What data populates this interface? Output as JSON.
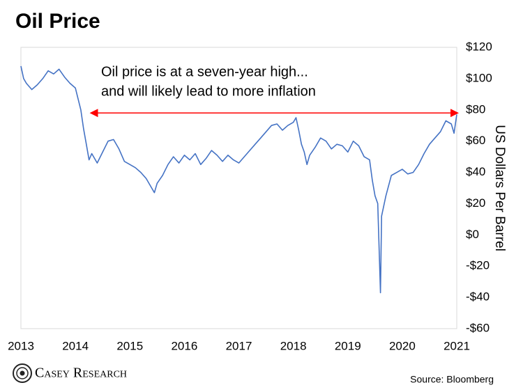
{
  "chart_data": {
    "type": "line",
    "title": "Oil Price",
    "annotation": [
      "Oil price is at a seven-year high...",
      "and will likely lead to more inflation"
    ],
    "y_label": "US Dollars Per Barrel",
    "source": "Source: Bloomberg",
    "brand": "Casey Research",
    "xlim": [
      2013,
      2021
    ],
    "xticks": [
      2013,
      2014,
      2015,
      2016,
      2017,
      2018,
      2019,
      2020,
      2021
    ],
    "ylim": [
      -60,
      120
    ],
    "yticks": [
      {
        "value": -60,
        "label": "-$60"
      },
      {
        "value": -40,
        "label": "-$40"
      },
      {
        "value": -20,
        "label": "-$20"
      },
      {
        "value": 0,
        "label": "$0"
      },
      {
        "value": 20,
        "label": "$20"
      },
      {
        "value": 40,
        "label": "$40"
      },
      {
        "value": 60,
        "label": "$60"
      },
      {
        "value": 80,
        "label": "$80"
      },
      {
        "value": 100,
        "label": "$100"
      },
      {
        "value": 120,
        "label": "$120"
      }
    ],
    "arrow": {
      "x": [
        2014.3,
        2021
      ],
      "y": 78,
      "color": "#ff0000"
    },
    "series": [
      {
        "name": "Oil Price",
        "color": "#4472c4",
        "x": [
          2013.0,
          2013.05,
          2013.1,
          2013.2,
          2013.3,
          2013.4,
          2013.5,
          2013.6,
          2013.7,
          2013.8,
          2013.9,
          2014.0,
          2014.1,
          2014.15,
          2014.2,
          2014.25,
          2014.3,
          2014.4,
          2014.5,
          2014.6,
          2014.7,
          2014.8,
          2014.9,
          2015.0,
          2015.1,
          2015.2,
          2015.3,
          2015.4,
          2015.45,
          2015.5,
          2015.6,
          2015.7,
          2015.8,
          2015.9,
          2016.0,
          2016.1,
          2016.2,
          2016.3,
          2016.4,
          2016.5,
          2016.6,
          2016.7,
          2016.8,
          2016.9,
          2017.0,
          2017.1,
          2017.2,
          2017.3,
          2017.4,
          2017.5,
          2017.6,
          2017.7,
          2017.8,
          2017.9,
          2018.0,
          2018.05,
          2018.1,
          2018.15,
          2018.2,
          2018.25,
          2018.3,
          2018.4,
          2018.5,
          2018.6,
          2018.7,
          2018.8,
          2018.9,
          2019.0,
          2019.1,
          2019.2,
          2019.3,
          2019.4,
          2019.45,
          2019.5,
          2019.55,
          2019.6,
          2019.62,
          2019.7,
          2019.8,
          2019.9,
          2020.0,
          2020.1,
          2020.2,
          2020.3,
          2020.4,
          2020.5,
          2020.6,
          2020.7,
          2020.8,
          2020.9,
          2020.95,
          2021.0
        ],
        "values": [
          108,
          100,
          97,
          93,
          96,
          100,
          105,
          103,
          106,
          101,
          97,
          94,
          80,
          68,
          58,
          48,
          52,
          46,
          53,
          60,
          61,
          55,
          47,
          45,
          43,
          40,
          36,
          30,
          27,
          33,
          38,
          45,
          50,
          46,
          51,
          48,
          52,
          45,
          49,
          54,
          51,
          47,
          51,
          48,
          46,
          50,
          54,
          58,
          62,
          66,
          70,
          71,
          67,
          70,
          72,
          75,
          67,
          58,
          53,
          45,
          51,
          56,
          62,
          60,
          55,
          58,
          57,
          53,
          60,
          57,
          50,
          48,
          35,
          25,
          20,
          -37,
          12,
          25,
          38,
          40,
          42,
          39,
          40,
          45,
          52,
          58,
          62,
          66,
          73,
          71,
          65,
          77
        ]
      }
    ]
  }
}
